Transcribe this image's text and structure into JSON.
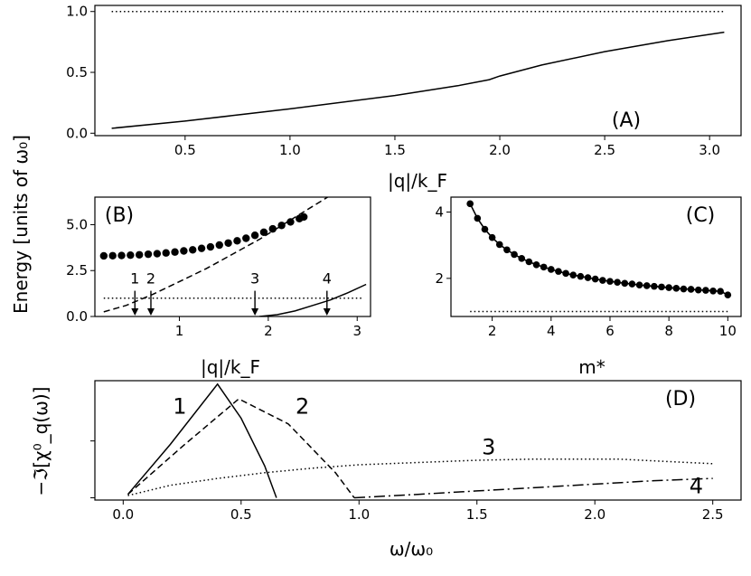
{
  "figure": {
    "shared_ylabel": "Energy [units of ω₀]"
  },
  "chart_data": [
    {
      "id": "A",
      "panel_label": "(A)",
      "type": "line",
      "title": "",
      "xlabel": "|q|/k_F",
      "ylabel": "Energy [units of ω₀]",
      "xlim": [
        0.07,
        3.15
      ],
      "ylim": [
        -0.02,
        1.05
      ],
      "xticks": [
        0.5,
        1.0,
        1.5,
        2.0,
        2.5,
        3.0
      ],
      "xtick_labels": [
        "0.5",
        "1.0",
        "1.5",
        "2.0",
        "2.5",
        "3.0"
      ],
      "yticks": [
        0.0,
        0.5,
        1.0
      ],
      "ytick_labels": [
        "0.0",
        "0.5",
        "1.0"
      ],
      "series": [
        {
          "name": "energy",
          "style": "solid",
          "x": [
            0.15,
            0.5,
            1.0,
            1.5,
            1.8,
            1.95,
            2.0,
            2.2,
            2.5,
            2.8,
            3.07
          ],
          "y": [
            0.04,
            0.1,
            0.2,
            0.31,
            0.39,
            0.44,
            0.47,
            0.56,
            0.67,
            0.76,
            0.83
          ]
        },
        {
          "name": "ω₀ reference",
          "style": "dotted",
          "x": [
            0.15,
            3.07
          ],
          "y": [
            1.0,
            1.0
          ]
        }
      ]
    },
    {
      "id": "B",
      "panel_label": "(B)",
      "type": "line",
      "xlabel": "|q|/k_F",
      "ylabel": "Energy [units of ω₀]",
      "xlim": [
        0.05,
        3.15
      ],
      "ylim": [
        0.0,
        6.5
      ],
      "xticks": [
        1,
        2,
        3
      ],
      "xtick_labels": [
        "1",
        "2",
        "3"
      ],
      "yticks": [
        0.0,
        2.5,
        5.0
      ],
      "ytick_labels": [
        "0.0",
        "2.5",
        "5.0"
      ],
      "series": [
        {
          "name": "collective mode",
          "style": "markers",
          "x": [
            0.15,
            0.25,
            0.35,
            0.45,
            0.55,
            0.65,
            0.75,
            0.85,
            0.95,
            1.05,
            1.15,
            1.25,
            1.35,
            1.45,
            1.55,
            1.65,
            1.75,
            1.85,
            1.95,
            2.05,
            2.15,
            2.25,
            2.35,
            2.4
          ],
          "y": [
            3.3,
            3.31,
            3.32,
            3.34,
            3.36,
            3.39,
            3.42,
            3.46,
            3.51,
            3.57,
            3.63,
            3.71,
            3.79,
            3.89,
            4.0,
            4.12,
            4.26,
            4.42,
            4.59,
            4.77,
            4.96,
            5.15,
            5.33,
            5.42
          ]
        },
        {
          "name": "upper particle-hole edge",
          "style": "dashed",
          "x": [
            0.15,
            0.4,
            0.7,
            1.0,
            1.3,
            1.6,
            1.9,
            2.2,
            2.5,
            2.8,
            3.0
          ],
          "y": [
            0.25,
            0.6,
            1.2,
            1.9,
            2.6,
            3.4,
            4.2,
            5.1,
            6.0,
            6.9,
            7.5
          ]
        },
        {
          "name": "lower particle-hole edge",
          "style": "solid",
          "x": [
            1.9,
            2.1,
            2.3,
            2.5,
            2.7,
            2.9,
            3.1
          ],
          "y": [
            0.0,
            0.1,
            0.3,
            0.6,
            0.9,
            1.3,
            1.75
          ]
        },
        {
          "name": "ω₀ reference",
          "style": "dotted",
          "x": [
            0.15,
            3.05
          ],
          "y": [
            1.0,
            1.0
          ]
        }
      ],
      "annotations": [
        {
          "text": "1",
          "x": 0.5
        },
        {
          "text": "2",
          "x": 0.68
        },
        {
          "text": "3",
          "x": 1.85
        },
        {
          "text": "4",
          "x": 2.66
        }
      ]
    },
    {
      "id": "C",
      "panel_label": "(C)",
      "type": "line",
      "xlabel": "m*",
      "ylabel": "",
      "xlim": [
        0.6,
        10.45
      ],
      "ylim": [
        0.85,
        4.45
      ],
      "xticks": [
        2,
        4,
        6,
        8,
        10
      ],
      "xtick_labels": [
        "2",
        "4",
        "6",
        "8",
        "10"
      ],
      "yticks": [
        2,
        4
      ],
      "ytick_labels": [
        "2",
        "4"
      ],
      "series": [
        {
          "name": "mode energy vs m*",
          "style": "line+markers",
          "x": [
            1.25,
            1.5,
            1.75,
            2.0,
            2.25,
            2.5,
            2.75,
            3.0,
            3.25,
            3.5,
            3.75,
            4.0,
            4.25,
            4.5,
            4.75,
            5.0,
            5.25,
            5.5,
            5.75,
            6.0,
            6.25,
            6.5,
            6.75,
            7.0,
            7.25,
            7.5,
            7.75,
            8.0,
            8.25,
            8.5,
            8.75,
            9.0,
            9.25,
            9.5,
            9.75,
            10.0
          ],
          "y": [
            4.25,
            3.81,
            3.48,
            3.23,
            3.02,
            2.86,
            2.72,
            2.6,
            2.5,
            2.41,
            2.34,
            2.27,
            2.21,
            2.15,
            2.1,
            2.06,
            2.02,
            1.98,
            1.94,
            1.91,
            1.88,
            1.85,
            1.83,
            1.8,
            1.78,
            1.76,
            1.74,
            1.72,
            1.7,
            1.68,
            1.67,
            1.65,
            1.64,
            1.62,
            1.61,
            1.5
          ]
        },
        {
          "name": "ω₀ reference",
          "style": "dotted",
          "x": [
            1.25,
            10.0
          ],
          "y": [
            1.0,
            1.0
          ]
        }
      ]
    },
    {
      "id": "D",
      "panel_label": "(D)",
      "type": "line",
      "xlabel": "ω/ω₀",
      "ylabel": "−ℑ[χ⁰_q(ω)]",
      "xlim": [
        -0.12,
        2.62
      ],
      "ylim": [
        -0.02,
        1.03
      ],
      "xticks": [
        0.0,
        0.5,
        1.0,
        1.5,
        2.0,
        2.5
      ],
      "xtick_labels": [
        "0.0",
        "0.5",
        "1.0",
        "1.5",
        "2.0",
        "2.5"
      ],
      "yticks": [
        0.0,
        0.5
      ],
      "ytick_labels": [
        "",
        ""
      ],
      "series": [
        {
          "name": "1",
          "style": "solid",
          "x": [
            0.02,
            0.2,
            0.4,
            0.5,
            0.6,
            0.65
          ],
          "y": [
            0.03,
            0.47,
            1.0,
            0.7,
            0.28,
            0.0
          ]
        },
        {
          "name": "2",
          "style": "dashed",
          "x": [
            0.02,
            0.25,
            0.49,
            0.7,
            0.9,
            0.98
          ],
          "y": [
            0.03,
            0.45,
            0.87,
            0.65,
            0.22,
            0.0
          ]
        },
        {
          "name": "3",
          "style": "dotted",
          "x": [
            0.02,
            0.2,
            0.4,
            0.6,
            0.8,
            1.0,
            1.25,
            1.5,
            1.75,
            1.9,
            2.1,
            2.3,
            2.5
          ],
          "y": [
            0.02,
            0.11,
            0.17,
            0.22,
            0.26,
            0.29,
            0.31,
            0.33,
            0.34,
            0.34,
            0.34,
            0.32,
            0.3
          ]
        },
        {
          "name": "4",
          "style": "dashdot",
          "x": [
            0.98,
            1.25,
            1.5,
            1.75,
            2.0,
            2.25,
            2.5
          ],
          "y": [
            0.0,
            0.03,
            0.06,
            0.09,
            0.12,
            0.15,
            0.17
          ]
        }
      ],
      "curve_labels": [
        {
          "text": "1",
          "x": 0.24,
          "y": 0.74
        },
        {
          "text": "2",
          "x": 0.76,
          "y": 0.74
        },
        {
          "text": "3",
          "x": 1.55,
          "y": 0.38
        },
        {
          "text": "4",
          "x": 2.43,
          "y": 0.04
        }
      ]
    }
  ]
}
